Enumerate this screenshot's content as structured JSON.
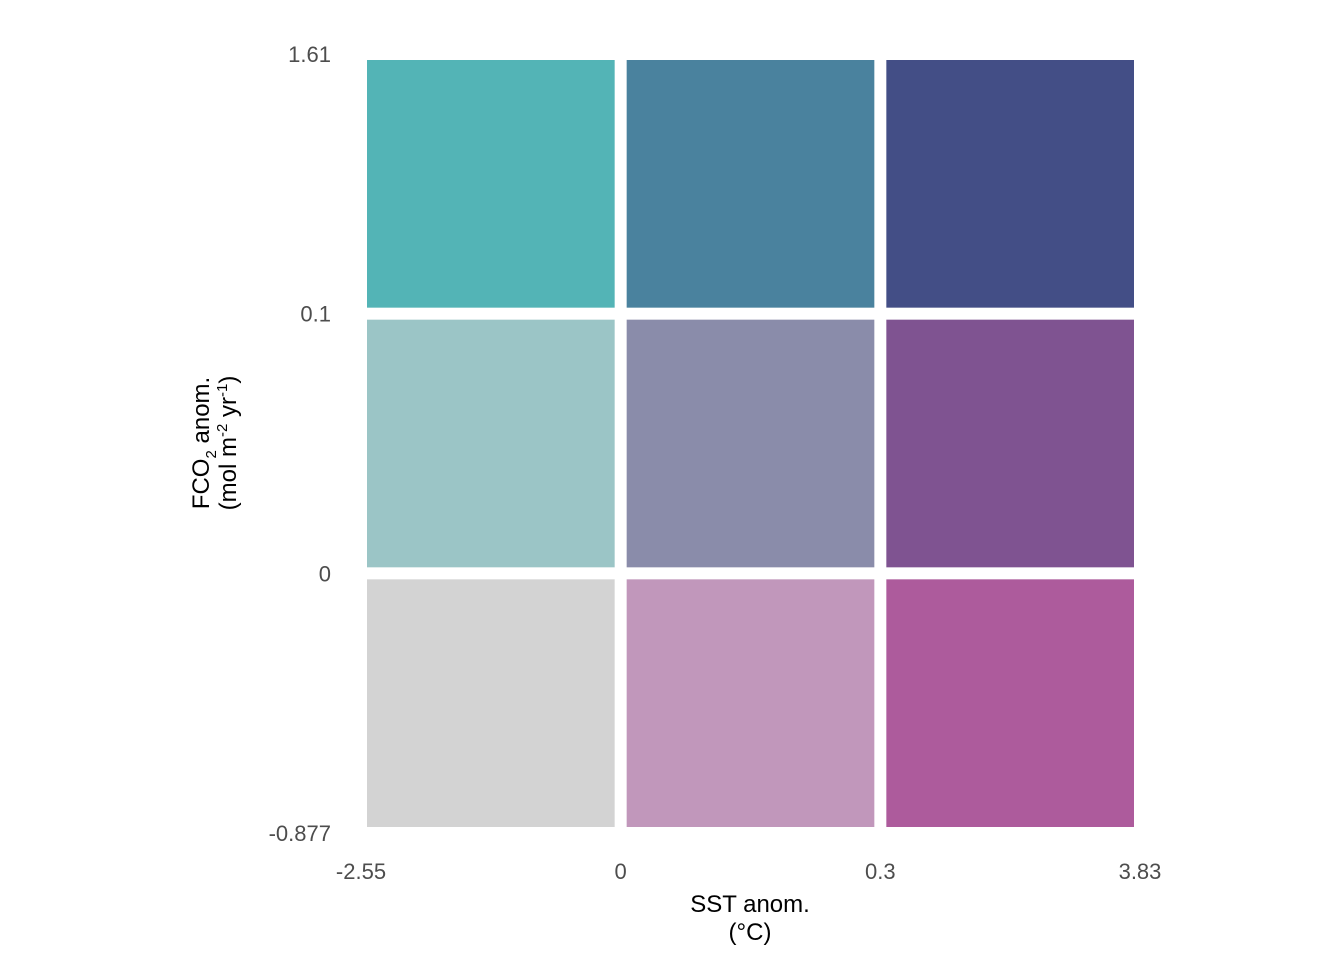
{
  "chart_data": {
    "type": "heatmap",
    "title": "",
    "x_breaks": [
      "-2.55",
      "0",
      "0.3",
      "3.83"
    ],
    "y_breaks": [
      "-0.877",
      "0",
      "0.1",
      "1.61"
    ],
    "xlabel": {
      "line1": "SST anom.",
      "line2": "(°C)"
    },
    "ylabel": {
      "line1_main": "FCO",
      "line1_sub": "2",
      "line1_rest": " anom.",
      "line2_a": "(mol m",
      "line2_sup1": "-2",
      "line2_b": " yr",
      "line2_sup2": "-1",
      "line2_c": ")"
    },
    "grid": false,
    "legend": "none",
    "cells": [
      {
        "x_bin": 0,
        "y_bin": 0,
        "color": "#d3d3d3"
      },
      {
        "x_bin": 1,
        "y_bin": 0,
        "color": "#c197bb"
      },
      {
        "x_bin": 2,
        "y_bin": 0,
        "color": "#ad5b9c"
      },
      {
        "x_bin": 0,
        "y_bin": 1,
        "color": "#9bc5c6"
      },
      {
        "x_bin": 1,
        "y_bin": 1,
        "color": "#8a8caa"
      },
      {
        "x_bin": 2,
        "y_bin": 1,
        "color": "#7f5391"
      },
      {
        "x_bin": 0,
        "y_bin": 2,
        "color": "#53b4b6"
      },
      {
        "x_bin": 1,
        "y_bin": 2,
        "color": "#4a829e"
      },
      {
        "x_bin": 2,
        "y_bin": 2,
        "color": "#434e86"
      }
    ]
  }
}
